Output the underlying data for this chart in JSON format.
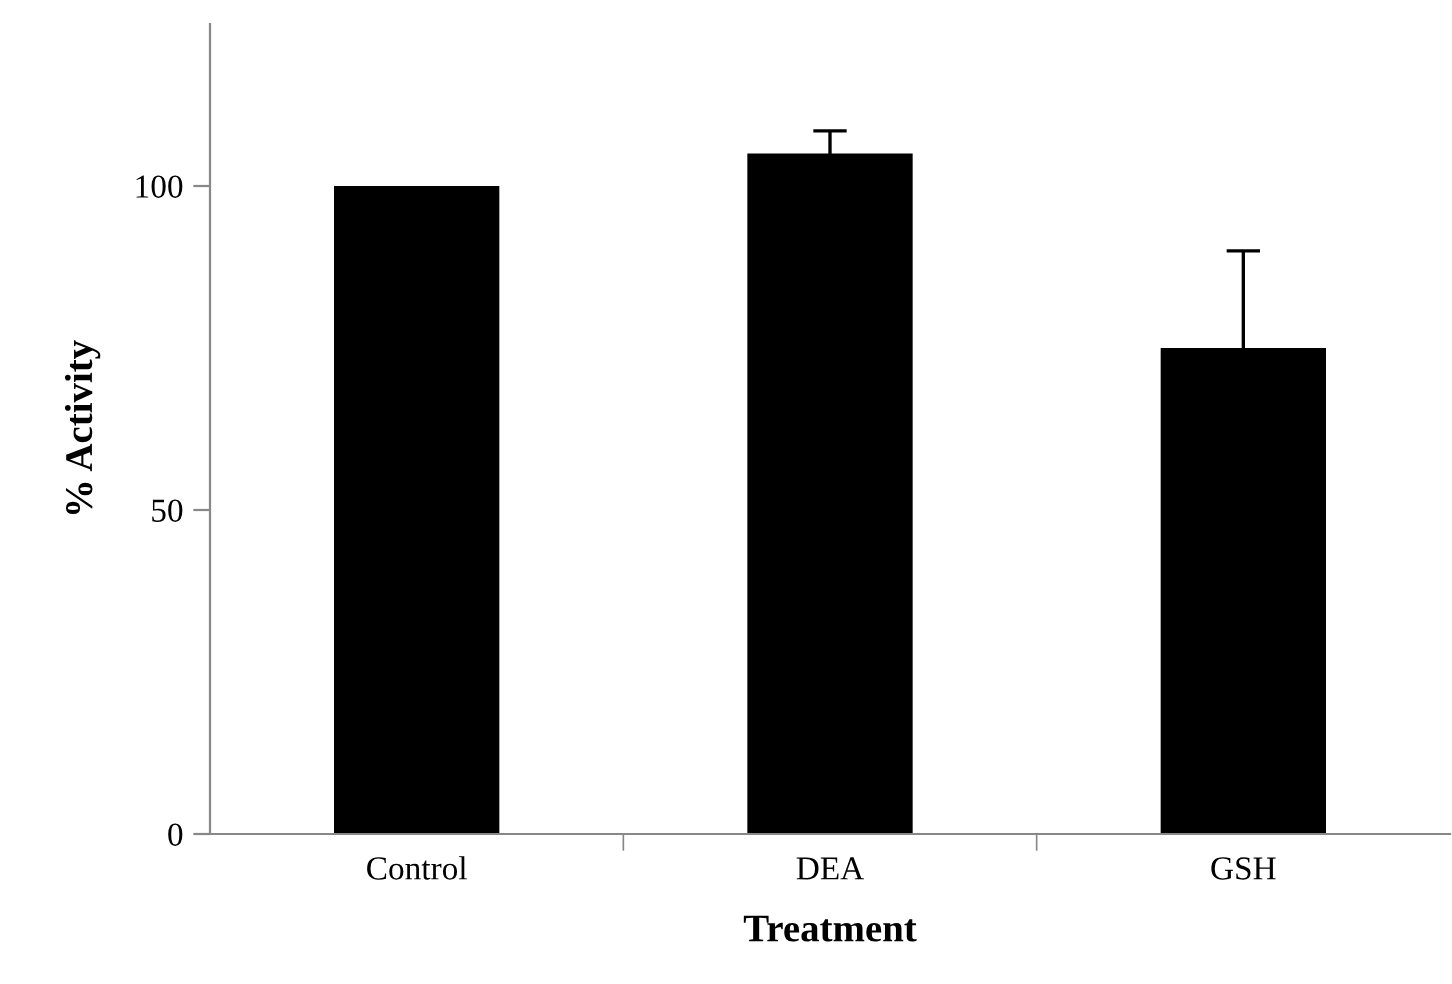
{
  "chart_data": {
    "type": "bar",
    "xlabel": "Treatment",
    "ylabel": "% Activity",
    "categories": [
      "Control",
      "DEA",
      "GSH"
    ],
    "series": [
      {
        "color": "#000000",
        "values": [
          100,
          105,
          75
        ],
        "errors": [
          null,
          3.5,
          15
        ]
      }
    ],
    "ylim": [
      0,
      125
    ],
    "yticks": [
      0,
      50,
      100
    ],
    "grid": false
  }
}
